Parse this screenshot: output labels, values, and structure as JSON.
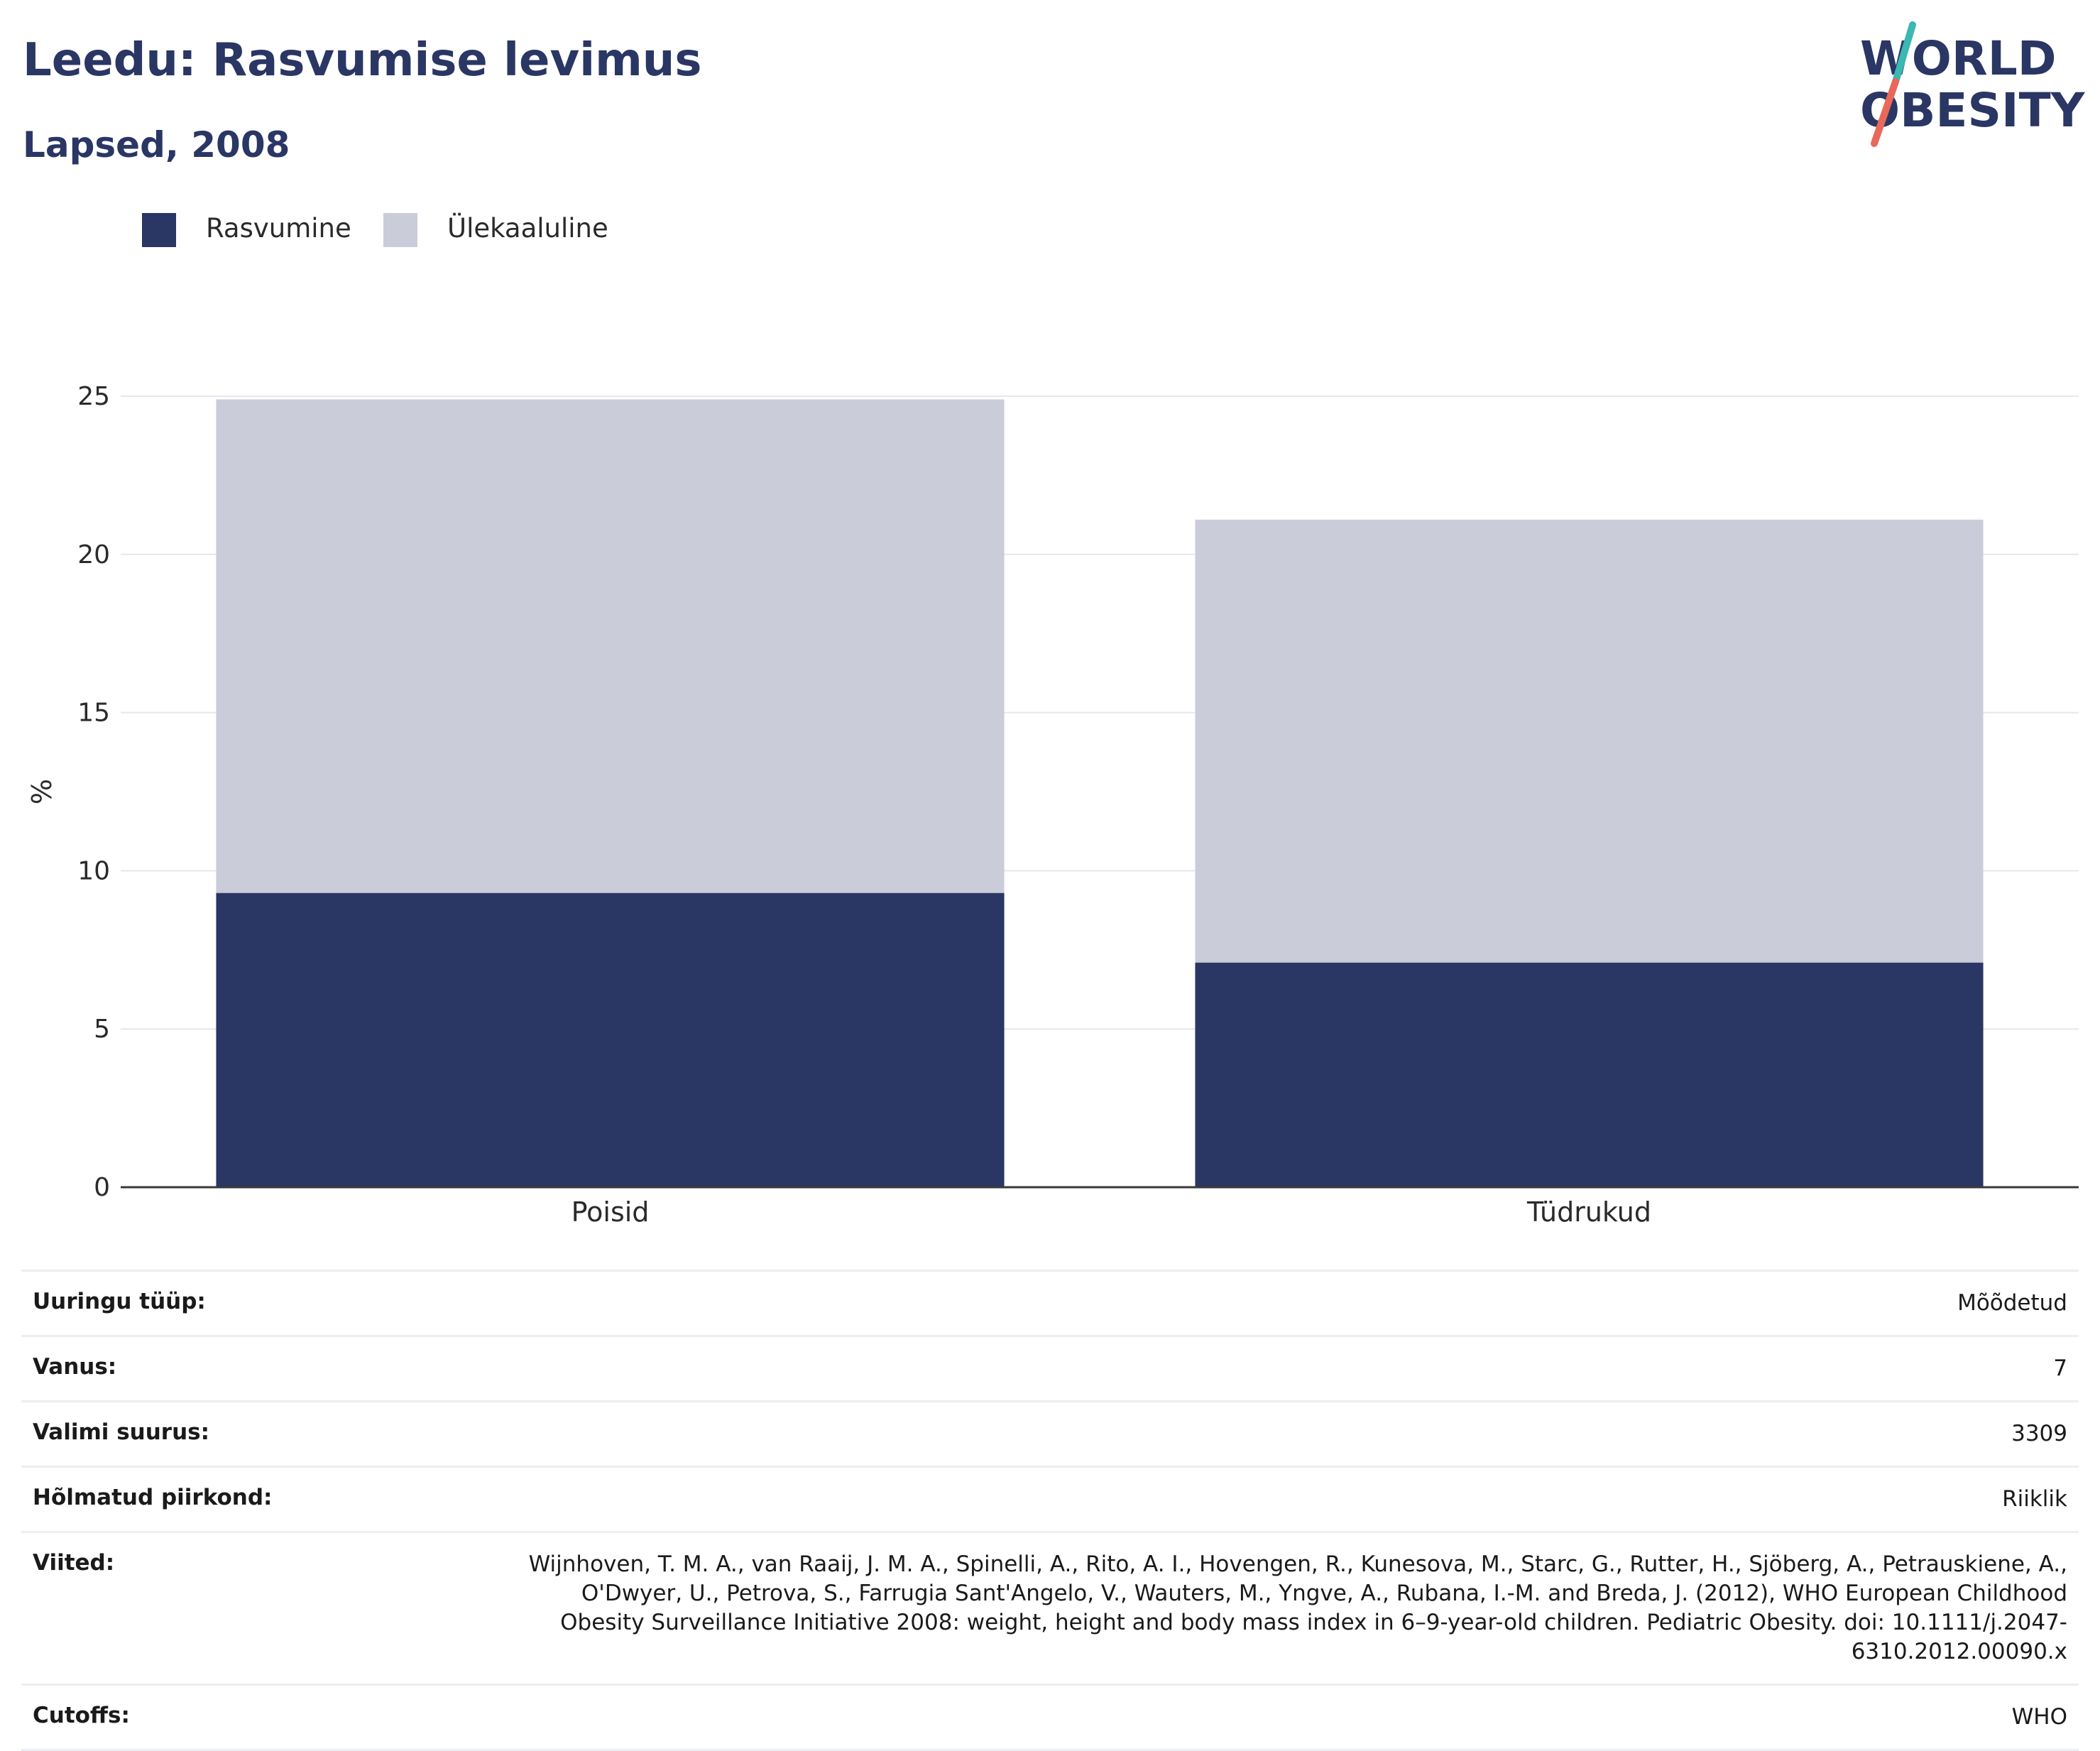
{
  "header": {
    "title": "Leedu: Rasvumise levimus",
    "subtitle": "Lapsed, 2008"
  },
  "logo": {
    "line1": "WORLD",
    "line2": "OBESITY",
    "accent_colors": [
      "#3ab8b1",
      "#e8685a"
    ]
  },
  "legend": [
    {
      "label": "Rasvumine",
      "color": "#2a3663"
    },
    {
      "label": "Ülekaaluline",
      "color": "#cacdd9"
    }
  ],
  "chart_data": {
    "type": "bar",
    "stacked": true,
    "categories": [
      "Poisid",
      "Tüdrukud"
    ],
    "series": [
      {
        "name": "Rasvumine",
        "values": [
          9.3,
          7.1
        ],
        "color": "#2a3663"
      },
      {
        "name": "Ülekaaluline",
        "values": [
          15.6,
          14.0
        ],
        "color": "#cacdd9"
      }
    ],
    "ylabel": "%",
    "ylim": [
      0,
      25
    ],
    "yticks": [
      "0",
      "5",
      "10",
      "15",
      "20",
      "25"
    ],
    "ytick_values": [
      0,
      5,
      10,
      15,
      20,
      25
    ],
    "grid": true,
    "legend_position": "top-left"
  },
  "details": [
    {
      "key": "Uuringu tüüp:",
      "value": "Mõõdetud"
    },
    {
      "key": "Vanus:",
      "value": "7"
    },
    {
      "key": "Valimi suurus:",
      "value": "3309"
    },
    {
      "key": "Hõlmatud piirkond:",
      "value": "Riiklik"
    },
    {
      "key": "Viited:",
      "value": "Wijnhoven, T. M. A., van Raaij, J. M. A., Spinelli, A., Rito, A. I., Hovengen, R., Kunesova, M., Starc, G., Rutter, H., Sjöberg, A., Petrauskiene, A., O'Dwyer, U., Petrova, S., Farrugia Sant'Angelo, V., Wauters, M., Yngve, A., Rubana, I.-M. and Breda, J. (2012), WHO European Childhood Obesity Surveillance Initiative 2008: weight, height and body mass index in 6–9-year-old children. Pediatric Obesity. doi: 10.1111/j.2047-6310.2012.00090.x"
    },
    {
      "key": "Cutoffs:",
      "value": "WHO"
    }
  ]
}
